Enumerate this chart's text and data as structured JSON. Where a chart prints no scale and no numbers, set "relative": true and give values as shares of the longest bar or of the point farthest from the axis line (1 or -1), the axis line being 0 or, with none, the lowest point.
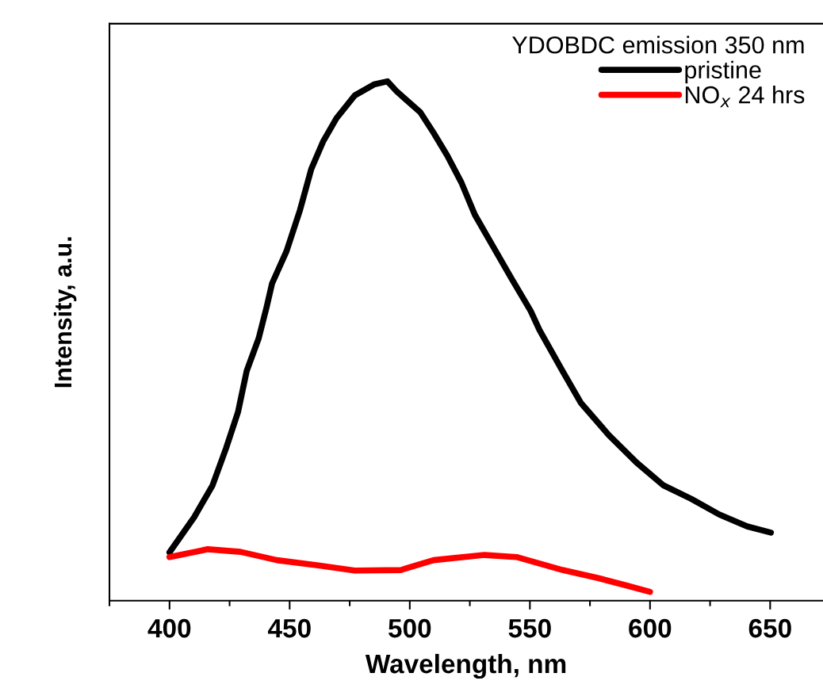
{
  "chart_data": {
    "type": "line",
    "relative": true,
    "xlabel": "Wavelength, nm",
    "ylabel": "Intensity, a.u.",
    "legend_title": "YDOBDC emission 350 nm",
    "legend": "top right",
    "xlim": [
      375,
      672
    ],
    "xticks": [
      400,
      450,
      500,
      550,
      600,
      650
    ],
    "grid": false,
    "marker": "none",
    "line_style": "solid",
    "series": [
      {
        "name": "pristine",
        "color": "#000000",
        "x": [
          400,
          410.3,
          417.9,
          423.5,
          428.5,
          432.1,
          437.1,
          440.4,
          442.7,
          448.7,
          454.3,
          459.0,
          463.9,
          469.5,
          477.1,
          485.1,
          490.7,
          494.7,
          504.3,
          509.9,
          515.6,
          521.5,
          527.1,
          534.8,
          542.4,
          550.3,
          554.0,
          563.6,
          571.2,
          582.8,
          594.4,
          605.6,
          617.2,
          628.8,
          640.4,
          650.3
        ],
        "values": [
          0.093,
          0.161,
          0.222,
          0.293,
          0.363,
          0.442,
          0.505,
          0.565,
          0.611,
          0.673,
          0.752,
          0.831,
          0.884,
          0.929,
          0.973,
          0.994,
          1.0,
          0.98,
          0.941,
          0.901,
          0.857,
          0.805,
          0.743,
          0.681,
          0.62,
          0.558,
          0.521,
          0.442,
          0.381,
          0.319,
          0.266,
          0.222,
          0.196,
          0.166,
          0.143,
          0.131
        ]
      },
      {
        "name": "NO$_{x}$ 24 hrs",
        "color": "#ff0000",
        "x": [
          400,
          415.9,
          429.5,
          444.7,
          461.9,
          477.1,
          496.3,
          509.9,
          531.1,
          544.4,
          563.6,
          578.8,
          590.4,
          600
        ],
        "values": [
          0.084,
          0.099,
          0.094,
          0.078,
          0.068,
          0.058,
          0.059,
          0.078,
          0.088,
          0.084,
          0.059,
          0.043,
          0.029,
          0.017
        ]
      }
    ]
  }
}
